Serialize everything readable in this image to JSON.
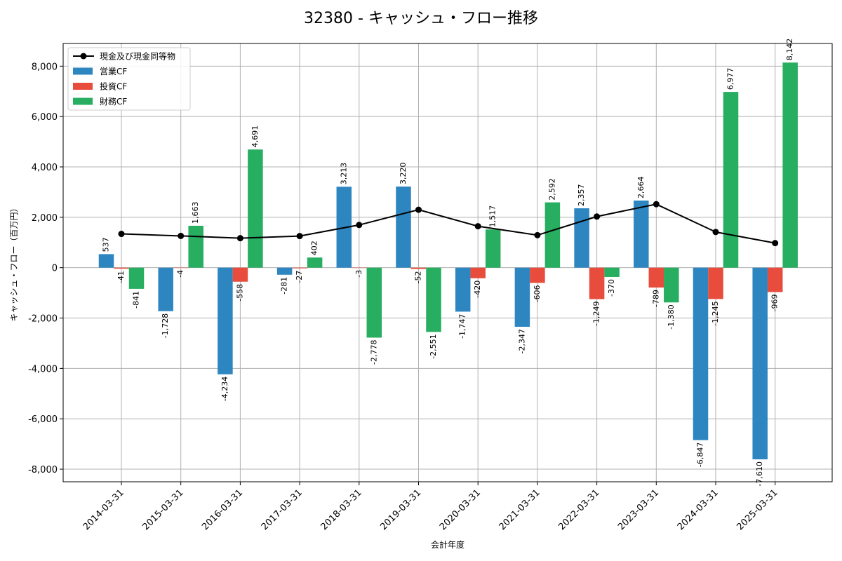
{
  "chart_data": {
    "type": "bar",
    "title": "32380 - キャッシュ・フロー推移",
    "xlabel": "会計年度",
    "ylabel": "キャッシュ・フロー（百万円）",
    "categories": [
      "2014-03-31",
      "2015-03-31",
      "2016-03-31",
      "2017-03-31",
      "2018-03-31",
      "2019-03-31",
      "2020-03-31",
      "2021-03-31",
      "2022-03-31",
      "2023-03-31",
      "2024-03-31",
      "2025-03-31"
    ],
    "ylim": [
      -8500,
      8900
    ],
    "yticks": [
      -8000,
      -6000,
      -4000,
      -2000,
      0,
      2000,
      4000,
      6000,
      8000
    ],
    "yticklabels": [
      "-8,000",
      "-6,000",
      "-4,000",
      "-2,000",
      "0",
      "2,000",
      "4,000",
      "6,000",
      "8,000"
    ],
    "grid": true,
    "legend_position": "top-left",
    "series": [
      {
        "name": "営業CF",
        "kind": "bar",
        "color": "#2e86c1",
        "values": [
          537,
          -1728,
          -4234,
          -281,
          3213,
          3220,
          -1747,
          -2347,
          2357,
          2664,
          -6847,
          -7610
        ],
        "labels": [
          "537",
          "-1,728",
          "-4,234",
          "-281",
          "3,213",
          "3,220",
          "-1,747",
          "-2,347",
          "2,357",
          "2,664",
          "-6,847",
          "-7,610"
        ]
      },
      {
        "name": "投資CF",
        "kind": "bar",
        "color": "#e74c3c",
        "values": [
          -41,
          -4,
          -558,
          -27,
          -3,
          -52,
          -420,
          -606,
          -1249,
          -789,
          -1245,
          -969
        ],
        "labels": [
          "-41",
          "-4",
          "-558",
          "-27",
          "-3",
          "-52",
          "-420",
          "-606",
          "-1,249",
          "-789",
          "-1,245",
          "-969"
        ]
      },
      {
        "name": "財務CF",
        "kind": "bar",
        "color": "#27ae60",
        "values": [
          -841,
          1663,
          4691,
          402,
          -2778,
          -2551,
          1517,
          2592,
          -370,
          -1380,
          6977,
          8142
        ],
        "labels": [
          "-841",
          "1,663",
          "4,691",
          "402",
          "-2,778",
          "-2,551",
          "1,517",
          "2,592",
          "-370",
          "-1,380",
          "6,977",
          "8,142"
        ]
      },
      {
        "name": "現金及び現金同等物",
        "kind": "line",
        "color": "#000000",
        "values": [
          1340,
          1260,
          1170,
          1255,
          1695,
          2300,
          1645,
          1290,
          2030,
          2520,
          1415,
          975
        ]
      }
    ]
  }
}
